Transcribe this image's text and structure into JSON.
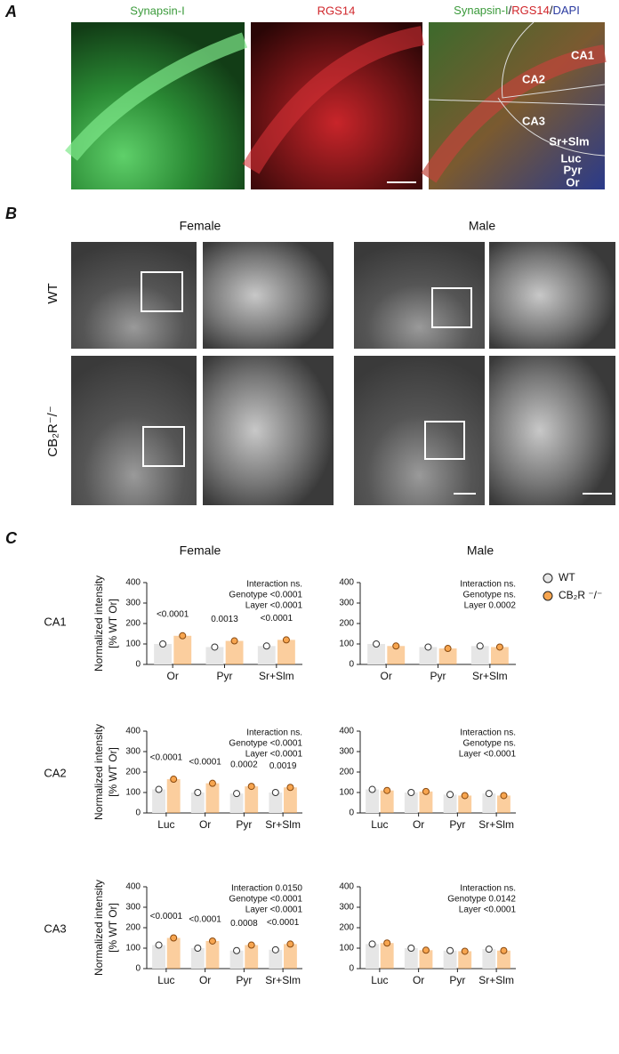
{
  "panel_labels": [
    "A",
    "B",
    "C"
  ],
  "panel_a": {
    "labels": [
      "Synapsin-I",
      "RGS14"
    ],
    "merge_label": [
      "Synapsin-I",
      "/",
      "RGS14",
      "/",
      "DAPI"
    ],
    "regions": [
      "CA1",
      "CA2",
      "CA3",
      "Sr+Slm",
      "Luc",
      "Pyr",
      "Or"
    ]
  },
  "panel_b": {
    "columns": [
      "Female",
      "Male"
    ],
    "rows": [
      "WT",
      "CB₂R⁻/⁻"
    ]
  },
  "panel_c": {
    "columns": [
      "Female",
      "Male"
    ],
    "rows": [
      "CA1",
      "CA2",
      "CA3"
    ]
  },
  "legend": [
    {
      "name": "WT",
      "color": "#e6e6e6"
    },
    {
      "name": "CB₂R ⁻/⁻",
      "color": "#f7a54f"
    }
  ],
  "chart_data": [
    {
      "type": "bar",
      "categories": [
        "Or",
        "Pyr",
        "Sr+Slm"
      ],
      "series": [
        {
          "values": [
            100,
            85,
            90
          ]
        },
        {
          "values": [
            140,
            115,
            120
          ]
        }
      ],
      "annotations": [
        "<0.0001",
        "0.0013",
        "<0.0001"
      ],
      "stats": [
        "Interaction ns.",
        "Genotype <0.0001",
        "Layer <0.0001"
      ],
      "ylabel": [
        "Normalized intensity",
        "[% WT Or]"
      ],
      "ylim": [
        0,
        400
      ],
      "yticks": [
        0,
        100,
        200,
        300,
        400
      ]
    },
    {
      "type": "bar",
      "categories": [
        "Or",
        "Pyr",
        "Sr+Slm"
      ],
      "series": [
        {
          "values": [
            100,
            85,
            90
          ]
        },
        {
          "values": [
            90,
            78,
            85
          ]
        }
      ],
      "stats": [
        "Interaction ns.",
        "Genotype ns.",
        "Layer 0.0002"
      ],
      "ylim": [
        0,
        400
      ],
      "yticks": [
        0,
        100,
        200,
        300,
        400
      ]
    },
    {
      "type": "bar",
      "categories": [
        "Luc",
        "Or",
        "Pyr",
        "Sr+Slm"
      ],
      "series": [
        {
          "values": [
            115,
            100,
            95,
            100
          ]
        },
        {
          "values": [
            165,
            145,
            130,
            125
          ]
        }
      ],
      "annotations": [
        "<0.0001",
        "<0.0001",
        "0.0002",
        "0.0019"
      ],
      "stats": [
        "Interaction ns.",
        "Genotype <0.0001",
        "Layer <0.0001"
      ],
      "ylabel": [
        "Normalized intensity",
        "[% WT Or]"
      ],
      "ylim": [
        0,
        400
      ],
      "yticks": [
        0,
        100,
        200,
        300,
        400
      ]
    },
    {
      "type": "bar",
      "categories": [
        "Luc",
        "Or",
        "Pyr",
        "Sr+Slm"
      ],
      "series": [
        {
          "values": [
            115,
            100,
            90,
            95
          ]
        },
        {
          "values": [
            110,
            105,
            85,
            85
          ]
        }
      ],
      "stats": [
        "Interaction ns.",
        "Genotype ns.",
        "Layer <0.0001"
      ],
      "ylim": [
        0,
        400
      ],
      "yticks": [
        0,
        100,
        200,
        300,
        400
      ]
    },
    {
      "type": "bar",
      "categories": [
        "Luc",
        "Or",
        "Pyr",
        "Sr+Slm"
      ],
      "series": [
        {
          "values": [
            115,
            100,
            88,
            92
          ]
        },
        {
          "values": [
            150,
            135,
            115,
            120
          ]
        }
      ],
      "annotations": [
        "<0.0001",
        "<0.0001",
        "0.0008",
        "<0.0001"
      ],
      "stats": [
        "Interaction 0.0150",
        "Genotype <0.0001",
        "Layer <0.0001"
      ],
      "ylabel": [
        "Normalized intensity",
        "[% WT Or]"
      ],
      "ylim": [
        0,
        400
      ],
      "yticks": [
        0,
        100,
        200,
        300,
        400
      ]
    },
    {
      "type": "bar",
      "categories": [
        "Luc",
        "Or",
        "Pyr",
        "Sr+Slm"
      ],
      "series": [
        {
          "values": [
            120,
            100,
            88,
            95
          ]
        },
        {
          "values": [
            125,
            90,
            85,
            88
          ]
        }
      ],
      "stats": [
        "Interaction ns.",
        "Genotype 0.0142",
        "Layer <0.0001"
      ],
      "ylim": [
        0,
        400
      ],
      "yticks": [
        0,
        100,
        200,
        300,
        400
      ]
    }
  ]
}
